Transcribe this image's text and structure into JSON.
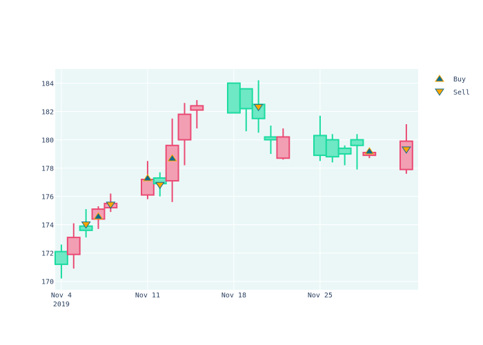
{
  "chart_data": {
    "type": "candlestick",
    "title": "",
    "xlabel": "",
    "ylabel": "",
    "ylim": [
      169.4,
      185
    ],
    "y_ticks": [
      170,
      172,
      174,
      176,
      178,
      180,
      182,
      184
    ],
    "x_ticks": [
      {
        "date": "2019-11-04",
        "label": "Nov 4",
        "sublabel": "2019"
      },
      {
        "date": "2019-11-11",
        "label": "Nov 11",
        "sublabel": ""
      },
      {
        "date": "2019-11-18",
        "label": "Nov 18",
        "sublabel": ""
      },
      {
        "date": "2019-11-25",
        "label": "Nov 25",
        "sublabel": ""
      }
    ],
    "grid": true,
    "legend_position": "top-right",
    "colors": {
      "plot_bg": "#ebf7f7",
      "increasing": "#1adba0",
      "increasing_fill": "#6ee8c5",
      "decreasing": "#ea4a73",
      "decreasing_fill": "#f29fb4",
      "marker_buy": "#0f6c8c",
      "marker_sell": "#ffa500"
    },
    "candles": [
      {
        "date": "2019-11-04",
        "open": 171.2,
        "high": 172.6,
        "low": 170.2,
        "close": 172.1
      },
      {
        "date": "2019-11-05",
        "open": 173.1,
        "high": 174.1,
        "low": 170.9,
        "close": 171.9
      },
      {
        "date": "2019-11-06",
        "open": 173.6,
        "high": 175.1,
        "low": 173.1,
        "close": 173.9
      },
      {
        "date": "2019-11-07",
        "open": 175.1,
        "high": 175.3,
        "low": 173.7,
        "close": 174.4
      },
      {
        "date": "2019-11-08",
        "open": 175.5,
        "high": 176.2,
        "low": 174.9,
        "close": 175.2
      },
      {
        "date": "2019-11-11",
        "open": 177.2,
        "high": 178.5,
        "low": 175.8,
        "close": 176.1
      },
      {
        "date": "2019-11-12",
        "open": 176.9,
        "high": 177.7,
        "low": 176.0,
        "close": 177.3
      },
      {
        "date": "2019-11-13",
        "open": 179.6,
        "high": 181.5,
        "low": 175.6,
        "close": 177.1
      },
      {
        "date": "2019-11-14",
        "open": 181.8,
        "high": 182.6,
        "low": 178.2,
        "close": 180.0
      },
      {
        "date": "2019-11-15",
        "open": 182.4,
        "high": 182.8,
        "low": 180.8,
        "close": 182.1
      },
      {
        "date": "2019-11-18",
        "open": 181.9,
        "high": 184.0,
        "low": 181.9,
        "close": 184.0
      },
      {
        "date": "2019-11-19",
        "open": 182.2,
        "high": 183.6,
        "low": 180.6,
        "close": 183.6
      },
      {
        "date": "2019-11-20",
        "open": 181.5,
        "high": 184.2,
        "low": 180.5,
        "close": 182.5
      },
      {
        "date": "2019-11-21",
        "open": 180.0,
        "high": 181.0,
        "low": 179.0,
        "close": 180.2
      },
      {
        "date": "2019-11-22",
        "open": 180.2,
        "high": 180.8,
        "low": 178.6,
        "close": 178.7
      },
      {
        "date": "2019-11-25",
        "open": 178.9,
        "high": 181.7,
        "low": 178.5,
        "close": 180.3
      },
      {
        "date": "2019-11-26",
        "open": 178.8,
        "high": 180.4,
        "low": 178.4,
        "close": 180.0
      },
      {
        "date": "2019-11-27",
        "open": 179.0,
        "high": 179.6,
        "low": 178.2,
        "close": 179.4
      },
      {
        "date": "2019-11-28",
        "open": 179.6,
        "high": 180.4,
        "low": 177.9,
        "close": 180.0
      },
      {
        "date": "2019-11-29",
        "open": 179.1,
        "high": 179.3,
        "low": 178.7,
        "close": 178.9
      },
      {
        "date": "2019-12-02",
        "open": 179.9,
        "high": 181.1,
        "low": 177.6,
        "close": 177.9
      }
    ],
    "series": [
      {
        "name": "Buy",
        "symbol": "triangle-up",
        "points": [
          {
            "date": "2019-11-07",
            "y": 174.6
          },
          {
            "date": "2019-11-11",
            "y": 177.3
          },
          {
            "date": "2019-11-13",
            "y": 178.7
          },
          {
            "date": "2019-11-29",
            "y": 179.2
          }
        ]
      },
      {
        "name": "Sell",
        "symbol": "triangle-down",
        "points": [
          {
            "date": "2019-11-06",
            "y": 174.0
          },
          {
            "date": "2019-11-08",
            "y": 175.4
          },
          {
            "date": "2019-11-12",
            "y": 176.8
          },
          {
            "date": "2019-11-20",
            "y": 182.3
          },
          {
            "date": "2019-12-02",
            "y": 179.3
          }
        ]
      }
    ]
  }
}
